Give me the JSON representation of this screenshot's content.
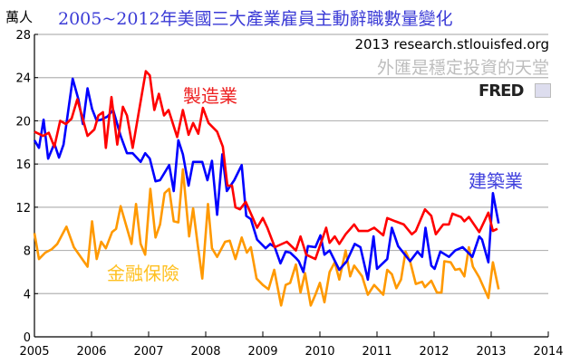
{
  "header": {
    "unit": "萬人",
    "title": "2005~2012年美國三大產業雇員主動辭職數量變化",
    "source": "2013 research.stlouisfed.org",
    "slogan": "外匯是穩定投資的天堂",
    "logo": "FRED"
  },
  "chart_data": {
    "type": "line",
    "title": "2005~2012年美國三大產業雇員主動辭職數量變化",
    "ylabel": "萬人",
    "xlabel": "",
    "xlim": [
      2005,
      2014
    ],
    "ylim": [
      0,
      28
    ],
    "xticks": [
      "2005",
      "2006",
      "2007",
      "2008",
      "2009",
      "2010",
      "2011",
      "2012",
      "2013",
      "2014"
    ],
    "yticks": [
      "0",
      "4",
      "8",
      "12",
      "16",
      "20",
      "24",
      "28"
    ],
    "grid": true,
    "series": [
      {
        "name": "製造業",
        "color": "#ff0000",
        "x": [
          2005.0,
          2005.15,
          2005.25,
          2005.35,
          2005.45,
          2005.55,
          2005.65,
          2005.75,
          2005.93,
          2006.05,
          2006.12,
          2006.2,
          2006.25,
          2006.35,
          2006.45,
          2006.55,
          2006.62,
          2006.72,
          2006.95,
          2007.02,
          2007.1,
          2007.18,
          2007.27,
          2007.35,
          2007.5,
          2007.6,
          2007.7,
          2007.78,
          2007.87,
          2007.95,
          2008.05,
          2008.2,
          2008.3,
          2008.38,
          2008.46,
          2008.52,
          2008.6,
          2008.7,
          2008.8,
          2008.9,
          2009.0,
          2009.08,
          2009.21,
          2009.42,
          2009.58,
          2009.66,
          2009.76,
          2009.92,
          2010.11,
          2010.17,
          2010.26,
          2010.34,
          2010.45,
          2010.6,
          2010.68,
          2010.84,
          2010.95,
          2011.11,
          2011.18,
          2011.32,
          2011.47,
          2011.61,
          2011.68,
          2011.84,
          2011.95,
          2012.03,
          2012.16,
          2012.26,
          2012.32,
          2012.47,
          2012.53,
          2012.61,
          2012.79,
          2012.95,
          2013.03,
          2013.11
        ],
        "y": [
          19.0,
          18.6,
          18.9,
          17.6,
          20.0,
          19.7,
          20.2,
          22.0,
          18.6,
          19.2,
          20.5,
          20.8,
          17.5,
          22.2,
          17.8,
          21.3,
          20.5,
          17.5,
          24.6,
          24.2,
          21.0,
          22.5,
          20.5,
          21.0,
          18.5,
          21.0,
          18.7,
          19.8,
          18.8,
          21.2,
          19.8,
          19.0,
          17.6,
          14.0,
          14.0,
          12.0,
          11.8,
          12.5,
          11.3,
          10.1,
          11.0,
          10.1,
          8.3,
          8.8,
          8.0,
          9.3,
          7.6,
          7.2,
          10.1,
          8.7,
          9.3,
          8.6,
          9.5,
          10.4,
          9.8,
          9.8,
          10.1,
          9.4,
          11.0,
          10.7,
          10.4,
          9.5,
          9.8,
          11.8,
          11.2,
          9.5,
          10.4,
          10.4,
          11.4,
          11.1,
          10.7,
          11.1,
          9.7,
          11.5,
          9.8,
          10.0
        ]
      },
      {
        "name": "建築業",
        "color": "#0000ff",
        "x": [
          2005.0,
          2005.08,
          2005.16,
          2005.24,
          2005.35,
          2005.43,
          2005.51,
          2005.67,
          2005.77,
          2005.85,
          2005.93,
          2006.01,
          2006.09,
          2006.17,
          2006.28,
          2006.38,
          2006.51,
          2006.62,
          2006.72,
          2006.86,
          2006.94,
          2007.02,
          2007.12,
          2007.2,
          2007.36,
          2007.44,
          2007.52,
          2007.6,
          2007.7,
          2007.78,
          2007.94,
          2008.03,
          2008.11,
          2008.2,
          2008.29,
          2008.37,
          2008.5,
          2008.63,
          2008.71,
          2008.79,
          2008.9,
          2009.05,
          2009.13,
          2009.21,
          2009.31,
          2009.4,
          2009.48,
          2009.58,
          2009.63,
          2009.71,
          2009.79,
          2009.92,
          2010.01,
          2010.08,
          2010.17,
          2010.34,
          2010.47,
          2010.61,
          2010.71,
          2010.84,
          2010.94,
          2011.0,
          2011.18,
          2011.26,
          2011.37,
          2011.58,
          2011.71,
          2011.79,
          2011.85,
          2011.95,
          2012.01,
          2012.11,
          2012.26,
          2012.37,
          2012.5,
          2012.58,
          2012.67,
          2012.79,
          2012.84,
          2012.95,
          2013.03,
          2013.13
        ],
        "y": [
          18.2,
          17.5,
          20.1,
          16.5,
          17.9,
          16.6,
          17.8,
          23.9,
          22.0,
          19.7,
          23.0,
          21.1,
          20.0,
          20.1,
          20.4,
          21.0,
          18.6,
          17.0,
          17.0,
          16.2,
          17.0,
          16.5,
          14.4,
          14.5,
          15.9,
          13.5,
          18.2,
          16.9,
          14.0,
          16.2,
          16.2,
          14.5,
          16.3,
          11.3,
          16.9,
          13.5,
          14.5,
          15.9,
          11.2,
          10.9,
          9.0,
          8.2,
          8.6,
          8.3,
          6.8,
          7.9,
          7.8,
          7.3,
          7.0,
          6.0,
          8.4,
          8.3,
          9.4,
          7.6,
          8.0,
          6.2,
          7.0,
          8.6,
          8.3,
          5.3,
          9.3,
          6.3,
          7.2,
          10.1,
          8.4,
          7.0,
          7.9,
          7.4,
          10.1,
          6.6,
          6.3,
          7.9,
          7.4,
          8.0,
          8.3,
          7.9,
          7.4,
          9.3,
          9.0,
          6.9,
          13.3,
          10.5
        ]
      },
      {
        "name": "金融保險",
        "color": "#ff9900",
        "x": [
          2005.0,
          2005.08,
          2005.19,
          2005.3,
          2005.4,
          2005.56,
          2005.69,
          2005.93,
          2006.01,
          2006.09,
          2006.17,
          2006.25,
          2006.36,
          2006.43,
          2006.51,
          2006.7,
          2006.78,
          2006.86,
          2006.94,
          2007.03,
          2007.12,
          2007.2,
          2007.28,
          2007.36,
          2007.44,
          2007.52,
          2007.6,
          2007.71,
          2007.78,
          2007.86,
          2007.94,
          2008.04,
          2008.11,
          2008.2,
          2008.34,
          2008.42,
          2008.52,
          2008.63,
          2008.72,
          2008.79,
          2008.89,
          2009.0,
          2009.1,
          2009.2,
          2009.32,
          2009.4,
          2009.48,
          2009.58,
          2009.66,
          2009.74,
          2009.84,
          2009.92,
          2010.0,
          2010.08,
          2010.17,
          2010.26,
          2010.34,
          2010.45,
          2010.53,
          2010.6,
          2010.74,
          2010.84,
          2010.95,
          2011.11,
          2011.18,
          2011.26,
          2011.34,
          2011.42,
          2011.5,
          2011.58,
          2011.68,
          2011.79,
          2011.84,
          2011.95,
          2012.05,
          2012.13,
          2012.18,
          2012.29,
          2012.37,
          2012.45,
          2012.53,
          2012.61,
          2012.68,
          2012.79,
          2012.95,
          2013.03,
          2013.13
        ],
        "y": [
          9.6,
          7.2,
          7.8,
          8.1,
          8.6,
          10.2,
          8.3,
          6.5,
          10.7,
          7.2,
          8.8,
          8.2,
          9.7,
          10.0,
          12.1,
          8.6,
          12.3,
          8.6,
          7.6,
          13.7,
          9.2,
          10.4,
          13.3,
          13.7,
          10.7,
          10.6,
          15.5,
          9.3,
          11.9,
          8.5,
          5.4,
          12.3,
          8.2,
          7.4,
          8.8,
          8.9,
          7.2,
          9.2,
          7.8,
          8.3,
          5.4,
          4.8,
          4.4,
          6.2,
          2.9,
          4.8,
          5.0,
          6.7,
          4.1,
          5.9,
          2.9,
          3.9,
          5.0,
          3.2,
          6.0,
          6.9,
          5.3,
          8.0,
          5.6,
          6.6,
          5.6,
          3.9,
          4.8,
          3.9,
          6.2,
          5.8,
          4.5,
          5.3,
          7.9,
          7.0,
          4.9,
          5.1,
          4.6,
          5.2,
          4.1,
          4.1,
          7.0,
          6.9,
          6.2,
          6.3,
          5.6,
          8.3,
          6.5,
          5.5,
          3.6,
          6.9,
          4.4
        ]
      }
    ]
  }
}
